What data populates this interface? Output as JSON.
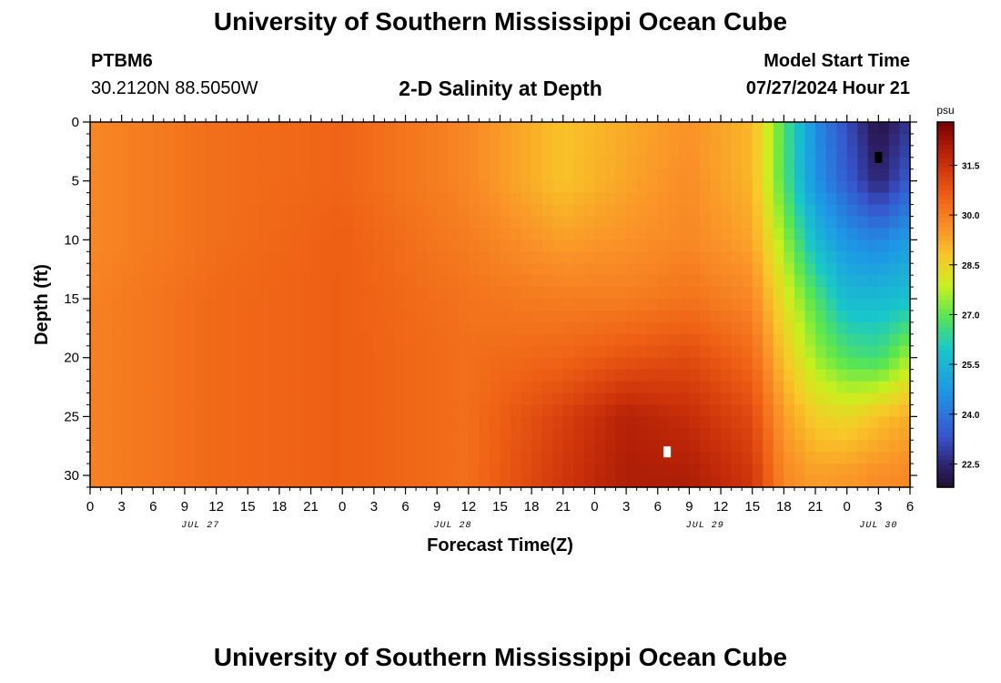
{
  "header": {
    "title": "University of Southern Mississippi Ocean Cube",
    "station": "PTBM6",
    "coords": "30.2120N  88.5050W",
    "subtitle": "2-D Salinity at Depth",
    "start_label": "Model Start Time",
    "start_value": "07/27/2024 Hour 21"
  },
  "footer": {
    "title": "University of Southern Mississippi Ocean Cube"
  },
  "chart_data": {
    "type": "heatmap",
    "title": "2-D Salinity at Depth",
    "xlabel": "Forecast Time(Z)",
    "ylabel": "Depth (ft)",
    "x_tick_labels": [
      "0",
      "3",
      "6",
      "9",
      "12",
      "15",
      "18",
      "21",
      "0",
      "3",
      "6",
      "9",
      "12",
      "15",
      "18",
      "21",
      "0",
      "3",
      "6",
      "9",
      "12",
      "15",
      "18",
      "21",
      "0",
      "3",
      "6"
    ],
    "x_day_labels": [
      {
        "label": "JUL 27",
        "tick": 3.5
      },
      {
        "label": "JUL 28",
        "tick": 11.5
      },
      {
        "label": "JUL 29",
        "tick": 19.5
      },
      {
        "label": "JUL 30",
        "tick": 25
      }
    ],
    "y_ticks": [
      0,
      5,
      10,
      15,
      20,
      25,
      30
    ],
    "ylim": [
      0,
      31
    ],
    "colorbar": {
      "unit": "psu",
      "range": [
        21.8,
        32.8
      ],
      "tick_labels": [
        "31.5",
        "30.0",
        "28.5",
        "27.0",
        "25.5",
        "24.0",
        "22.5"
      ],
      "tick_values": [
        31.5,
        30.0,
        28.5,
        27.0,
        25.5,
        24.0,
        22.5
      ]
    },
    "markers": [
      {
        "color": "#000000",
        "tick": 25,
        "depth": 3
      },
      {
        "color": "#ffffff",
        "tick": 18.3,
        "depth": 28
      }
    ],
    "depths": [
      0,
      5,
      10,
      15,
      20,
      25,
      30
    ],
    "salinity_at_tick": {
      "0": [
        29.8,
        29.8,
        29.8,
        29.9,
        29.9,
        29.9,
        29.9
      ],
      "4": [
        30.3,
        30.3,
        30.3,
        30.4,
        30.4,
        30.4,
        30.4
      ],
      "8": [
        30.5,
        30.5,
        30.6,
        30.6,
        30.6,
        30.6,
        30.6
      ],
      "12": [
        29.8,
        29.8,
        30.0,
        30.2,
        30.3,
        30.3,
        30.3
      ],
      "15": [
        28.8,
        28.8,
        29.4,
        30.0,
        30.5,
        31.2,
        31.4
      ],
      "17": [
        29.2,
        29.3,
        29.6,
        30.0,
        30.8,
        31.9,
        32.0
      ],
      "19": [
        29.6,
        29.7,
        29.8,
        30.2,
        31.0,
        31.6,
        32.0
      ],
      "21": [
        29.0,
        29.0,
        29.3,
        29.8,
        30.4,
        31.0,
        31.4
      ],
      "22": [
        26.8,
        26.8,
        27.5,
        28.2,
        28.8,
        29.4,
        29.8
      ],
      "23": [
        24.5,
        24.6,
        25.6,
        26.8,
        27.5,
        28.6,
        29.4
      ],
      "24": [
        23.2,
        23.5,
        24.6,
        25.6,
        26.8,
        28.4,
        29.5
      ],
      "25": [
        22.0,
        22.4,
        24.3,
        25.6,
        26.6,
        28.8,
        29.7
      ],
      "26": [
        22.8,
        23.5,
        24.8,
        25.8,
        27.6,
        29.2,
        29.8
      ]
    }
  }
}
